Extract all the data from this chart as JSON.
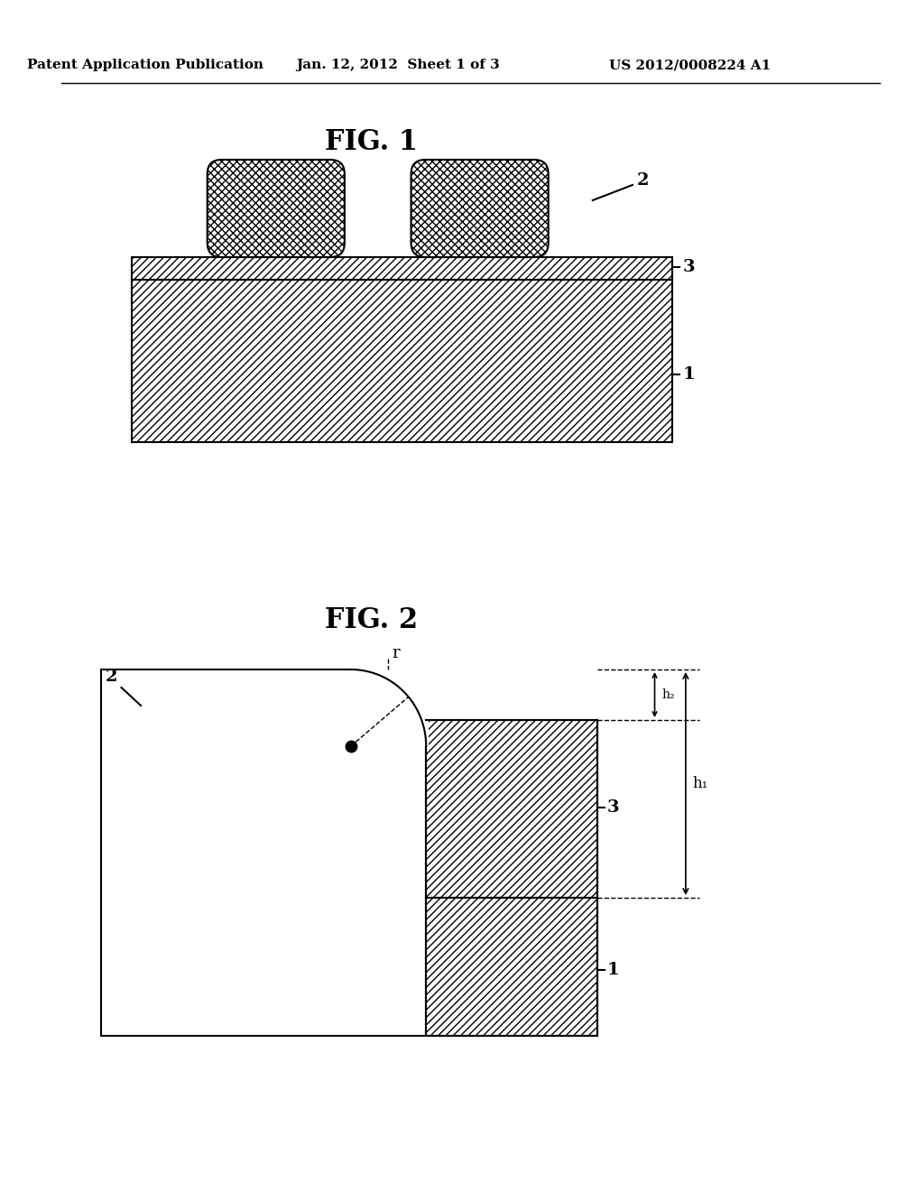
{
  "background_color": "#ffffff",
  "header_text": "Patent Application Publication",
  "header_date": "Jan. 12, 2012  Sheet 1 of 3",
  "header_patent": "US 2012/0008224 A1",
  "fig1_title": "FIG. 1",
  "fig2_title": "FIG. 2",
  "line_color": "#000000",
  "label_1": "1",
  "label_2": "2",
  "label_3": "3",
  "label_r": "r",
  "label_h1": "h₁",
  "label_h2": "h₂"
}
